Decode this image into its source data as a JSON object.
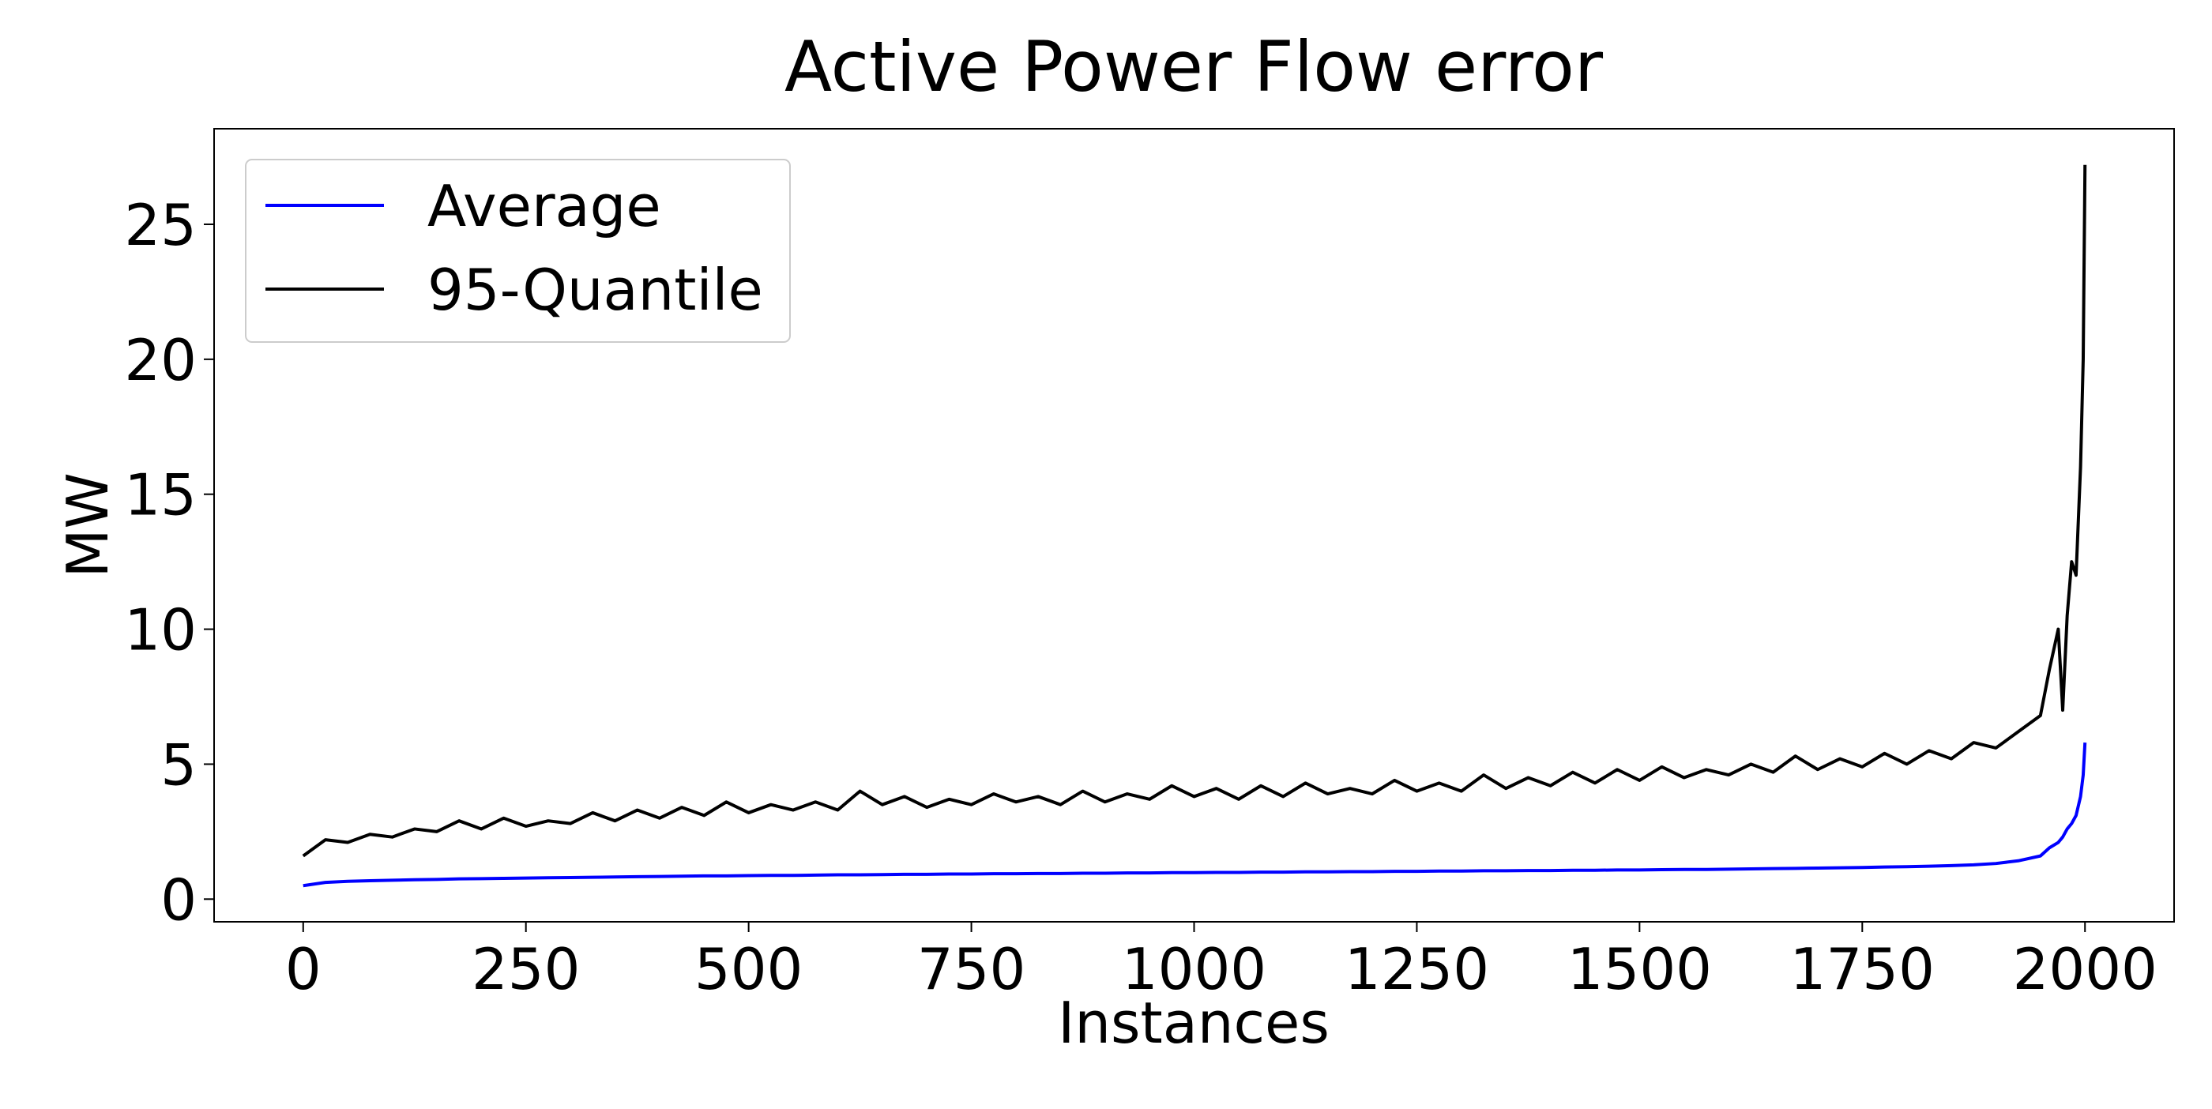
{
  "chart_data": {
    "type": "line",
    "title": "Active Power Flow error",
    "x_label": "Instances",
    "y_label": "MW",
    "x": [
      0,
      25,
      50,
      75,
      100,
      125,
      150,
      175,
      200,
      225,
      250,
      275,
      300,
      325,
      350,
      375,
      400,
      425,
      450,
      475,
      500,
      525,
      550,
      575,
      600,
      625,
      650,
      675,
      700,
      725,
      750,
      775,
      800,
      825,
      850,
      875,
      900,
      925,
      950,
      975,
      1000,
      1025,
      1050,
      1075,
      1100,
      1125,
      1150,
      1175,
      1200,
      1225,
      1250,
      1275,
      1300,
      1325,
      1350,
      1375,
      1400,
      1425,
      1450,
      1475,
      1500,
      1525,
      1550,
      1575,
      1600,
      1625,
      1650,
      1675,
      1700,
      1725,
      1750,
      1775,
      1800,
      1825,
      1850,
      1875,
      1900,
      1925,
      1950,
      1960,
      1970,
      1975,
      1980,
      1985,
      1990,
      1995,
      1998,
      2000
    ],
    "series": [
      {
        "name": "Average",
        "color": "#0000ff",
        "values": [
          0.5,
          0.62,
          0.66,
          0.68,
          0.7,
          0.72,
          0.73,
          0.75,
          0.76,
          0.77,
          0.78,
          0.79,
          0.8,
          0.81,
          0.82,
          0.83,
          0.84,
          0.85,
          0.86,
          0.86,
          0.87,
          0.88,
          0.88,
          0.89,
          0.9,
          0.9,
          0.91,
          0.92,
          0.92,
          0.93,
          0.93,
          0.94,
          0.94,
          0.95,
          0.95,
          0.96,
          0.96,
          0.97,
          0.97,
          0.98,
          0.98,
          0.99,
          0.99,
          1.0,
          1.0,
          1.01,
          1.01,
          1.02,
          1.02,
          1.03,
          1.03,
          1.04,
          1.04,
          1.05,
          1.05,
          1.06,
          1.06,
          1.07,
          1.07,
          1.08,
          1.08,
          1.09,
          1.1,
          1.1,
          1.11,
          1.12,
          1.13,
          1.14,
          1.15,
          1.16,
          1.17,
          1.19,
          1.2,
          1.22,
          1.24,
          1.27,
          1.32,
          1.42,
          1.6,
          1.9,
          2.1,
          2.3,
          2.6,
          2.8,
          3.1,
          3.8,
          4.6,
          5.8
        ]
      },
      {
        "name": "95-Quantile",
        "color": "#000000",
        "values": [
          1.6,
          2.2,
          2.1,
          2.4,
          2.3,
          2.6,
          2.5,
          2.9,
          2.6,
          3.0,
          2.7,
          2.9,
          2.8,
          3.2,
          2.9,
          3.3,
          3.0,
          3.4,
          3.1,
          3.6,
          3.2,
          3.5,
          3.3,
          3.6,
          3.3,
          4.0,
          3.5,
          3.8,
          3.4,
          3.7,
          3.5,
          3.9,
          3.6,
          3.8,
          3.5,
          4.0,
          3.6,
          3.9,
          3.7,
          4.2,
          3.8,
          4.1,
          3.7,
          4.2,
          3.8,
          4.3,
          3.9,
          4.1,
          3.9,
          4.4,
          4.0,
          4.3,
          4.0,
          4.6,
          4.1,
          4.5,
          4.2,
          4.7,
          4.3,
          4.8,
          4.4,
          4.9,
          4.5,
          4.8,
          4.6,
          5.0,
          4.7,
          5.3,
          4.8,
          5.2,
          4.9,
          5.4,
          5.0,
          5.5,
          5.2,
          5.8,
          5.6,
          6.2,
          6.8,
          8.5,
          10.0,
          7.0,
          10.5,
          12.5,
          12.0,
          16.0,
          20.0,
          27.2
        ]
      }
    ],
    "xlim": [
      -100,
      2100
    ],
    "ylim": [
      -0.84,
      28.54
    ],
    "xticks": [
      0,
      250,
      500,
      750,
      1000,
      1250,
      1500,
      1750,
      2000
    ],
    "yticks": [
      0,
      5,
      10,
      15,
      20,
      25
    ],
    "grid": false,
    "legend": "upper left"
  }
}
